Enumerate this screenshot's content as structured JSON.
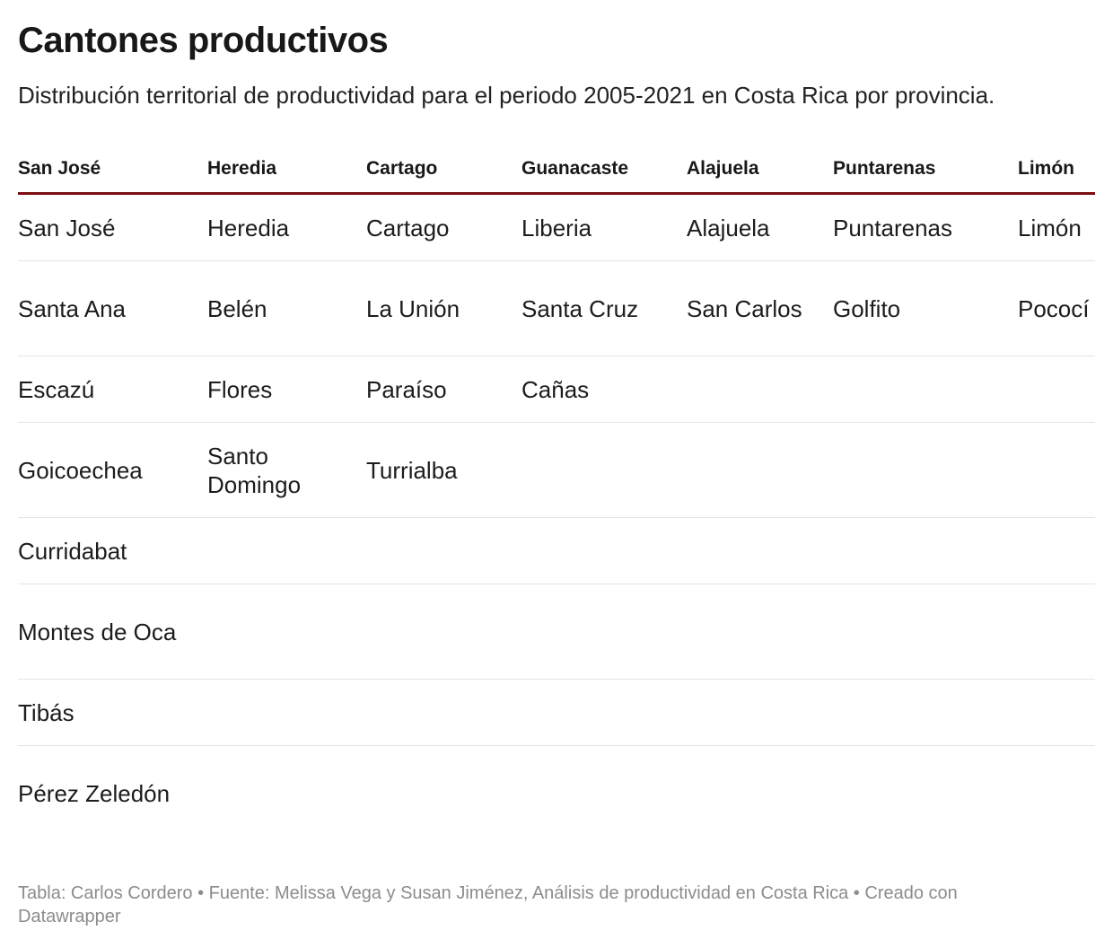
{
  "title": "Cantones productivos",
  "subtitle": "Distribución territorial de productividad para el periodo 2005-2021 en Costa Rica por provincia.",
  "chart_data": {
    "type": "table",
    "columns": [
      "San José",
      "Heredia",
      "Cartago",
      "Guanacaste",
      "Alajuela",
      "Puntarenas",
      "Limón"
    ],
    "rows": [
      [
        "San José",
        "Heredia",
        "Cartago",
        "Liberia",
        "Alajuela",
        "Puntarenas",
        "Limón"
      ],
      [
        "Santa Ana",
        "Belén",
        "La Unión",
        "Santa Cruz",
        "San Carlos",
        "Golfito",
        "Pococí"
      ],
      [
        "Escazú",
        "Flores",
        "Paraíso",
        "Cañas",
        "",
        "",
        ""
      ],
      [
        "Goicoechea",
        "Santo Domingo",
        "Turrialba",
        "",
        "",
        "",
        ""
      ],
      [
        "Curridabat",
        "",
        "",
        "",
        "",
        "",
        ""
      ],
      [
        "Montes de Oca",
        "",
        "",
        "",
        "",
        "",
        ""
      ],
      [
        "Tibás",
        "",
        "",
        "",
        "",
        "",
        ""
      ],
      [
        "Pérez Zeledón",
        "",
        "",
        "",
        "",
        "",
        ""
      ]
    ]
  },
  "footer": "Tabla: Carlos Cordero • Fuente: Melissa Vega y Susan Jiménez, Análisis de productividad en Costa Rica • Creado con Datawrapper"
}
